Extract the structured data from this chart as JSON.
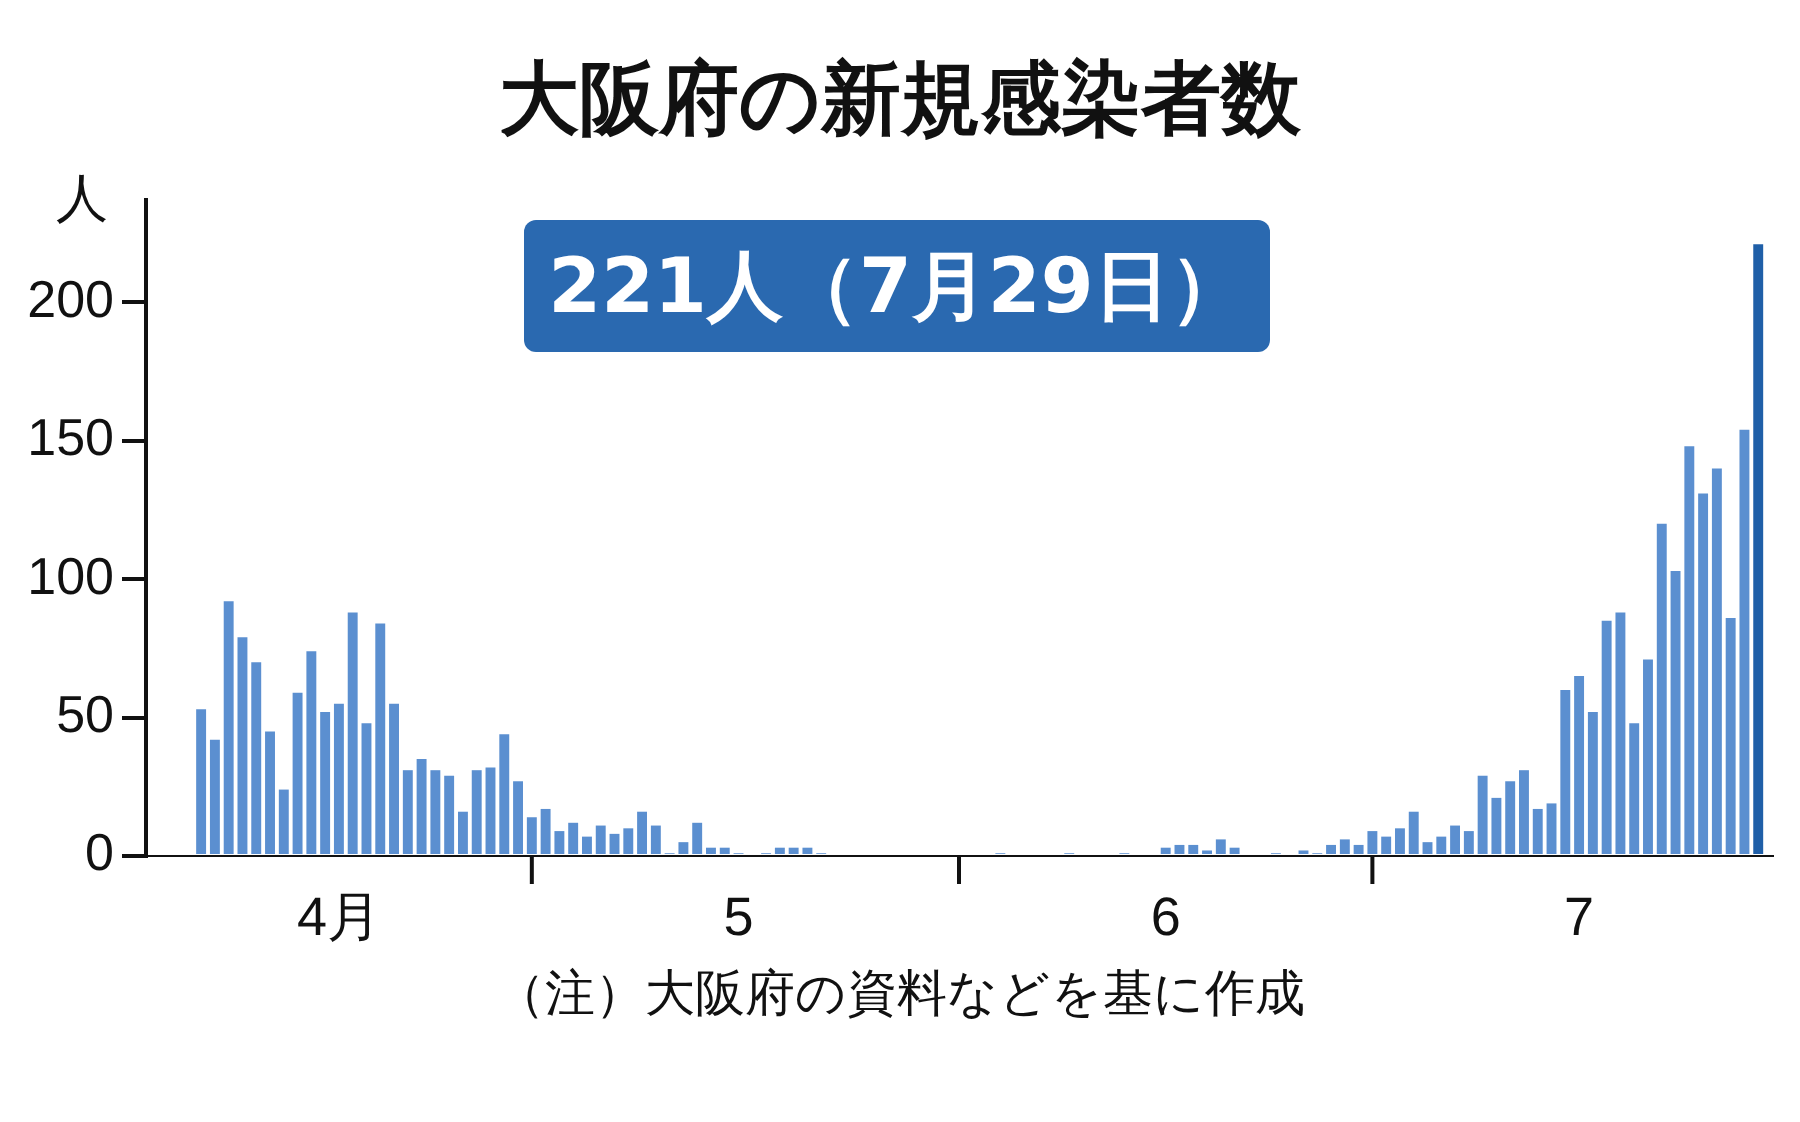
{
  "chart_data": {
    "type": "bar",
    "title": "大阪府の新規感染者数",
    "subtitle": "221人（7月29日）",
    "ylabel": "人",
    "annotations": [
      "（注）大阪府の資料などを基に作成"
    ],
    "x": [
      "--04-07",
      "--04-08",
      "--04-09",
      "--04-10",
      "--04-11",
      "--04-12",
      "--04-13",
      "--04-14",
      "--04-15",
      "--04-16",
      "--04-17",
      "--04-18",
      "--04-19",
      "--04-20",
      "--04-21",
      "--04-22",
      "--04-23",
      "--04-24",
      "--04-25",
      "--04-26",
      "--04-27",
      "--04-28",
      "--04-29",
      "--04-30",
      "--05-01",
      "--05-02",
      "--05-03",
      "--05-04",
      "--05-05",
      "--05-06",
      "--05-07",
      "--05-08",
      "--05-09",
      "--05-10",
      "--05-11",
      "--05-12",
      "--05-13",
      "--05-14",
      "--05-15",
      "--05-16",
      "--05-17",
      "--05-18",
      "--05-19",
      "--05-20",
      "--05-21",
      "--05-22",
      "--05-23",
      "--05-24",
      "--05-25",
      "--05-26",
      "--05-27",
      "--05-28",
      "--05-29",
      "--05-30",
      "--05-31",
      "--06-01",
      "--06-02",
      "--06-03",
      "--06-04",
      "--06-05",
      "--06-06",
      "--06-07",
      "--06-08",
      "--06-09",
      "--06-10",
      "--06-11",
      "--06-12",
      "--06-13",
      "--06-14",
      "--06-15",
      "--06-16",
      "--06-17",
      "--06-18",
      "--06-19",
      "--06-20",
      "--06-21",
      "--06-22",
      "--06-23",
      "--06-24",
      "--06-25",
      "--06-26",
      "--06-27",
      "--06-28",
      "--06-29",
      "--06-30",
      "--07-01",
      "--07-02",
      "--07-03",
      "--07-04",
      "--07-05",
      "--07-06",
      "--07-07",
      "--07-08",
      "--07-09",
      "--07-10",
      "--07-11",
      "--07-12",
      "--07-13",
      "--07-14",
      "--07-15",
      "--07-16",
      "--07-17",
      "--07-18",
      "--07-19",
      "--07-20",
      "--07-21",
      "--07-22",
      "--07-23",
      "--07-24",
      "--07-25",
      "--07-26",
      "--07-27",
      "--07-28",
      "--07-29"
    ],
    "values": [
      53,
      42,
      92,
      79,
      70,
      45,
      24,
      59,
      74,
      52,
      55,
      88,
      48,
      84,
      55,
      31,
      35,
      31,
      29,
      16,
      31,
      32,
      44,
      27,
      14,
      17,
      9,
      12,
      7,
      11,
      8,
      10,
      16,
      11,
      1,
      5,
      12,
      3,
      3,
      1,
      0,
      1,
      3,
      3,
      3,
      1,
      0,
      0,
      0,
      0,
      0,
      0,
      0,
      0,
      0,
      0,
      0,
      0,
      1,
      0,
      0,
      0,
      0,
      1,
      0,
      0,
      0,
      1,
      0,
      0,
      3,
      4,
      4,
      2,
      6,
      3,
      0,
      0,
      1,
      0,
      2,
      1,
      4,
      6,
      4,
      9,
      7,
      10,
      16,
      5,
      7,
      11,
      9,
      29,
      21,
      27,
      31,
      17,
      19,
      60,
      65,
      52,
      85,
      88,
      48,
      71,
      120,
      103,
      148,
      131,
      140,
      86,
      154,
      221
    ],
    "colors": [
      "#5b8fd0",
      "#5b8fd0",
      "#5b8fd0",
      "#5b8fd0",
      "#5b8fd0",
      "#5b8fd0",
      "#5b8fd0",
      "#5b8fd0",
      "#5b8fd0",
      "#5b8fd0",
      "#5b8fd0",
      "#5b8fd0",
      "#5b8fd0",
      "#5b8fd0",
      "#5b8fd0",
      "#5b8fd0",
      "#5b8fd0",
      "#5b8fd0",
      "#5b8fd0",
      "#5b8fd0",
      "#5b8fd0",
      "#5b8fd0",
      "#5b8fd0",
      "#5b8fd0",
      "#5b8fd0",
      "#5b8fd0",
      "#5b8fd0",
      "#5b8fd0",
      "#5b8fd0",
      "#5b8fd0",
      "#5b8fd0",
      "#5b8fd0",
      "#5b8fd0",
      "#5b8fd0",
      "#5b8fd0",
      "#5b8fd0",
      "#5b8fd0",
      "#5b8fd0",
      "#5b8fd0",
      "#5b8fd0",
      "#5b8fd0",
      "#5b8fd0",
      "#5b8fd0",
      "#5b8fd0",
      "#5b8fd0",
      "#5b8fd0",
      "#5b8fd0",
      "#5b8fd0",
      "#5b8fd0",
      "#5b8fd0",
      "#5b8fd0",
      "#5b8fd0",
      "#5b8fd0",
      "#5b8fd0",
      "#5b8fd0",
      "#5b8fd0",
      "#5b8fd0",
      "#5b8fd0",
      "#5b8fd0",
      "#5b8fd0",
      "#5b8fd0",
      "#5b8fd0",
      "#5b8fd0",
      "#5b8fd0",
      "#5b8fd0",
      "#5b8fd0",
      "#5b8fd0",
      "#5b8fd0",
      "#5b8fd0",
      "#5b8fd0",
      "#5b8fd0",
      "#5b8fd0",
      "#5b8fd0",
      "#5b8fd0",
      "#5b8fd0",
      "#5b8fd0",
      "#5b8fd0",
      "#5b8fd0",
      "#5b8fd0",
      "#5b8fd0",
      "#5b8fd0",
      "#5b8fd0",
      "#5b8fd0",
      "#5b8fd0",
      "#5b8fd0",
      "#5b8fd0",
      "#5b8fd0",
      "#5b8fd0",
      "#5b8fd0",
      "#5b8fd0",
      "#5b8fd0",
      "#5b8fd0",
      "#5b8fd0",
      "#5b8fd0",
      "#5b8fd0",
      "#5b8fd0",
      "#5b8fd0",
      "#5b8fd0",
      "#5b8fd0",
      "#5b8fd0",
      "#5b8fd0",
      "#5b8fd0",
      "#5b8fd0",
      "#5b8fd0",
      "#5b8fd0",
      "#5b8fd0",
      "#5b8fd0",
      "#5b8fd0",
      "#5b8fd0",
      "#5b8fd0",
      "#5b8fd0",
      "#5b8fd0",
      "#5b8fd0",
      "#1f5fa8"
    ],
    "xlim": [
      "--04-03",
      "--07-30"
    ],
    "xticks": [
      {
        "value": "--04-17",
        "label": "4月"
      },
      {
        "value": "--05-01",
        "label": null
      },
      {
        "value": "--05-16",
        "label": "5"
      },
      {
        "value": "--06-01",
        "label": null
      },
      {
        "value": "--06-16",
        "label": "6"
      },
      {
        "value": "--07-01",
        "label": null
      },
      {
        "value": "--07-16",
        "label": "7"
      }
    ],
    "ylim": [
      0,
      237
    ],
    "yticks": [
      0,
      50,
      100,
      150,
      200
    ],
    "grid": false,
    "legend": false
  }
}
